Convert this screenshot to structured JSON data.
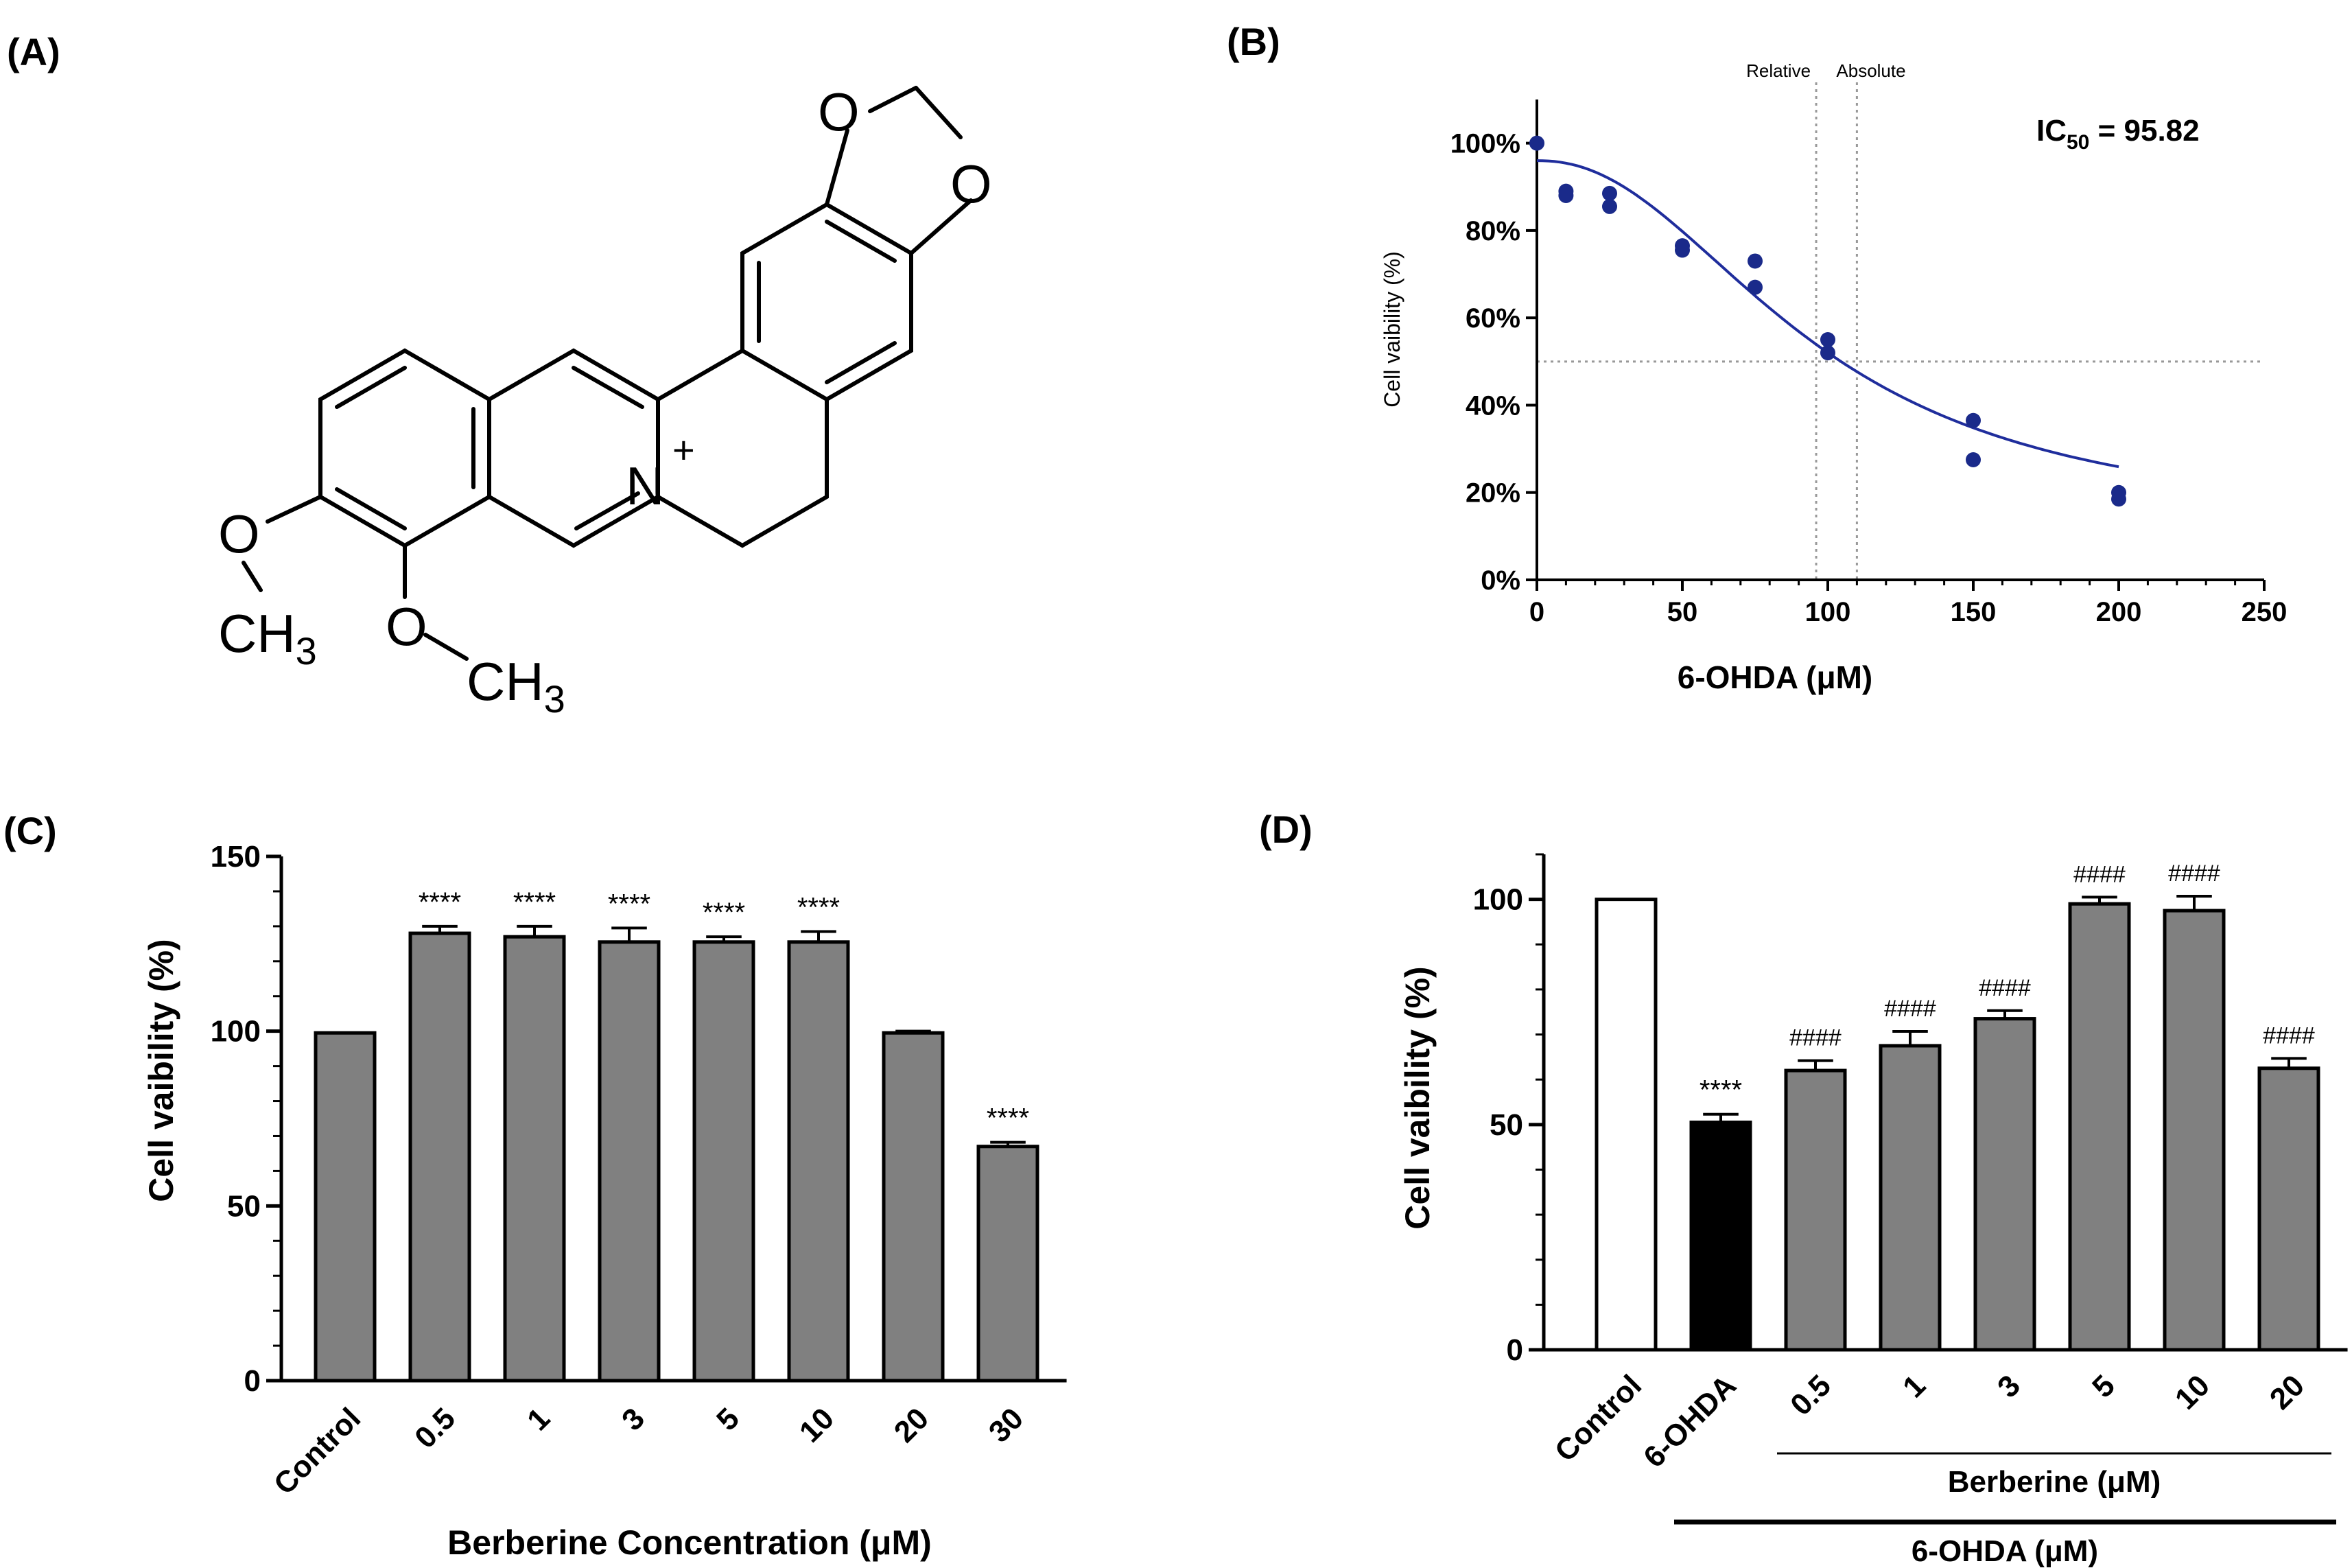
{
  "panels": {
    "a": {
      "label": "(A)"
    },
    "b": {
      "label": "(B)"
    },
    "c": {
      "label": "(C)"
    },
    "d": {
      "label": "(D)"
    }
  },
  "structure": {
    "atoms": {
      "o_top": "O",
      "o_right": "O",
      "n_plus": "N",
      "charge": "+",
      "o_left": "O",
      "ch3_left": "CH",
      "ch3_left_sub": "3",
      "o_bottom": "O",
      "ch3_bottom": "CH",
      "ch3_bottom_sub": "3"
    }
  },
  "chart_data": [
    {
      "id": "B",
      "type": "scatter",
      "title": "",
      "xlabel": "6-OHDA (μM)",
      "ylabel": "Cell vaibility (%)",
      "xlim": [
        0,
        250
      ],
      "ylim": [
        0,
        110
      ],
      "x_ticks": [
        0,
        50,
        100,
        150,
        200,
        250
      ],
      "y_ticks": [
        0,
        20,
        40,
        60,
        80,
        100
      ],
      "y_tick_labels": [
        "0%",
        "20%",
        "40%",
        "60%",
        "80%",
        "100%"
      ],
      "points": [
        {
          "x": 0,
          "y": 100
        },
        {
          "x": 10,
          "y": 89
        },
        {
          "x": 10,
          "y": 88
        },
        {
          "x": 25,
          "y": 88.5
        },
        {
          "x": 25,
          "y": 85.5
        },
        {
          "x": 50,
          "y": 76.5
        },
        {
          "x": 50,
          "y": 75.5
        },
        {
          "x": 75,
          "y": 73
        },
        {
          "x": 75,
          "y": 67
        },
        {
          "x": 100,
          "y": 55
        },
        {
          "x": 100,
          "y": 52
        },
        {
          "x": 150,
          "y": 36.5
        },
        {
          "x": 150,
          "y": 27.5
        },
        {
          "x": 200,
          "y": 20
        },
        {
          "x": 200,
          "y": 18.5
        }
      ],
      "fit": {
        "top": 96,
        "bottom": 12,
        "ic50": 95.82,
        "hill": 2.2
      },
      "fit_color": "#1f2d9c",
      "point_color": "#1a2a8a",
      "ref_lines": {
        "y50": 50,
        "relative_x": 96,
        "absolute_x": 110
      },
      "ref_labels": {
        "relative": "Relative",
        "absolute": "Absolute"
      },
      "annotation": {
        "prefix": "IC",
        "sub": "50",
        "suffix": " = 95.82"
      }
    },
    {
      "id": "C",
      "type": "bar",
      "title": "",
      "xlabel": "Berberine Concentration (μM)",
      "ylabel": "Cell vaibility (%)",
      "ylim": [
        0,
        150
      ],
      "y_ticks": [
        0,
        50,
        100,
        150
      ],
      "categories": [
        "Control",
        "0.5",
        "1",
        "3",
        "5",
        "10",
        "20",
        "30"
      ],
      "values": [
        99.5,
        128,
        127,
        125.5,
        125.5,
        125.5,
        99.5,
        67
      ],
      "errors": [
        0,
        2,
        3,
        4,
        1.5,
        3,
        0.5,
        1.2
      ],
      "annotations": [
        "",
        "****",
        "****",
        "****",
        "****",
        "****",
        "",
        "****"
      ],
      "bar_color": "#808080"
    },
    {
      "id": "D",
      "type": "bar",
      "title": "",
      "xlabel": "",
      "ylabel": "Cell vaibility (%)",
      "ylim": [
        0,
        110
      ],
      "y_ticks": [
        0,
        50,
        100
      ],
      "categories": [
        "Control",
        "6-OHDA",
        "0.5",
        "1",
        "3",
        "5",
        "10",
        "20"
      ],
      "values": [
        100,
        50.5,
        62,
        67.5,
        73.5,
        99,
        97.5,
        62.5
      ],
      "errors": [
        0,
        1.8,
        2.2,
        3.2,
        1.8,
        1.5,
        3.2,
        2.2
      ],
      "colors": [
        "#ffffff",
        "#000000",
        "#808080",
        "#808080",
        "#808080",
        "#808080",
        "#808080",
        "#808080"
      ],
      "annotations": [
        "",
        "****",
        "####",
        "####",
        "####",
        "####",
        "####",
        "####"
      ],
      "group_labels": {
        "berberine": "Berberine (μM)",
        "ohda": "6-OHDA (μM)"
      }
    }
  ]
}
